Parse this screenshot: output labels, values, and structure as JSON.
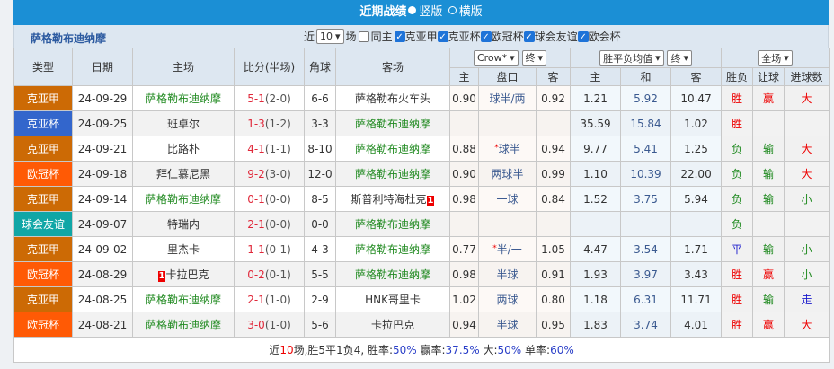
{
  "title": "近期战绩",
  "view_vertical": "竖版",
  "view_horizontal": "横版",
  "team": "萨格勒布迪纳摩",
  "filters": {
    "near": "近",
    "count": "10",
    "games": "场",
    "same_home": "同主",
    "leagues": [
      "克亚甲",
      "克亚杯",
      "欧冠杯",
      "球会友谊",
      "欧会杯"
    ]
  },
  "headers": {
    "type": "类型",
    "date": "日期",
    "home": "主场",
    "score": "比分(半场)",
    "corner": "角球",
    "away": "客场",
    "company": "Crow*",
    "final1": "终",
    "avg": "胜平负均值",
    "final2": "终",
    "scope": "全场",
    "h_home": "主",
    "h_line": "盘口",
    "h_away": "客",
    "o_home": "主",
    "o_draw": "和",
    "o_away": "客",
    "wl": "胜负",
    "hcp": "让球",
    "goals": "进球数"
  },
  "colors": {
    "克亚甲": "#cc6a05",
    "克亚杯": "#3366cc",
    "欧冠杯": "#ff5a05",
    "球会友谊": "#10a6a6"
  },
  "rows": [
    {
      "type": "克亚甲",
      "date": "24-09-29",
      "home": "萨格勒布迪纳摩",
      "home_team": true,
      "score": "5-1",
      "half": "(2-0)",
      "corner": "6-6",
      "away": "萨格勒布火车头",
      "h1": "0.90",
      "line": "球半/两",
      "h2": "0.92",
      "o1": "1.21",
      "o2": "5.92",
      "o3": "10.47",
      "wl": "胜",
      "hcp": "赢",
      "goals": "大"
    },
    {
      "type": "克亚杯",
      "date": "24-09-25",
      "home": "班卓尔",
      "score": "1-3",
      "half": "(1-2)",
      "corner": "3-3",
      "away": "萨格勒布迪纳摩",
      "h1": "",
      "line": "",
      "h2": "",
      "o1": "35.59",
      "o2": "15.84",
      "o3": "1.02",
      "wl": "胜",
      "hcp": "",
      "goals": ""
    },
    {
      "type": "克亚甲",
      "date": "24-09-21",
      "home": "比路朴",
      "score": "4-1",
      "half": "(1-1)",
      "corner": "8-10",
      "away": "萨格勒布迪纳摩",
      "h1": "0.88",
      "line": "球半",
      "star": true,
      "h2": "0.94",
      "o1": "9.77",
      "o2": "5.41",
      "o3": "1.25",
      "wl": "负",
      "hcp": "输",
      "goals": "大"
    },
    {
      "type": "欧冠杯",
      "date": "24-09-18",
      "home": "拜仁慕尼黑",
      "score": "9-2",
      "half": "(3-0)",
      "corner": "12-0",
      "away": "萨格勒布迪纳摩",
      "h1": "0.90",
      "line": "两球半",
      "h2": "0.99",
      "o1": "1.10",
      "o2": "10.39",
      "o3": "22.00",
      "wl": "负",
      "hcp": "输",
      "goals": "大"
    },
    {
      "type": "克亚甲",
      "date": "24-09-14",
      "home": "萨格勒布迪纳摩",
      "home_team": true,
      "score": "0-1",
      "half": "(0-0)",
      "corner": "8-5",
      "away": "斯普利特海杜克",
      "away_rc": "1",
      "h1": "0.98",
      "line": "一球",
      "h2": "0.84",
      "o1": "1.52",
      "o2": "3.75",
      "o3": "5.94",
      "wl": "负",
      "hcp": "输",
      "goals": "小"
    },
    {
      "type": "球会友谊",
      "date": "24-09-07",
      "home": "特瑞内",
      "score": "2-1",
      "half": "(0-0)",
      "corner": "0-0",
      "away": "萨格勒布迪纳摩",
      "h1": "",
      "line": "",
      "h2": "",
      "o1": "",
      "o2": "",
      "o3": "",
      "wl": "负",
      "hcp": "",
      "goals": ""
    },
    {
      "type": "克亚甲",
      "date": "24-09-02",
      "home": "里杰卡",
      "score": "1-1",
      "half": "(0-1)",
      "corner": "4-3",
      "away": "萨格勒布迪纳摩",
      "h1": "0.77",
      "line": "半/一",
      "star": true,
      "h2": "1.05",
      "o1": "4.47",
      "o2": "3.54",
      "o3": "1.71",
      "wl": "平",
      "hcp": "输",
      "goals": "小"
    },
    {
      "type": "欧冠杯",
      "date": "24-08-29",
      "home": "卡拉巴克",
      "home_rc": "1",
      "score": "0-2",
      "half": "(0-1)",
      "corner": "5-5",
      "away": "萨格勒布迪纳摩",
      "h1": "0.98",
      "line": "半球",
      "h2": "0.91",
      "o1": "1.93",
      "o2": "3.97",
      "o3": "3.43",
      "wl": "胜",
      "hcp": "赢",
      "goals": "小"
    },
    {
      "type": "克亚甲",
      "date": "24-08-25",
      "home": "萨格勒布迪纳摩",
      "home_team": true,
      "score": "2-1",
      "half": "(1-0)",
      "corner": "2-9",
      "away": "HNK哥里卡",
      "h1": "1.02",
      "line": "两球",
      "h2": "0.80",
      "o1": "1.18",
      "o2": "6.31",
      "o3": "11.71",
      "wl": "胜",
      "hcp": "输",
      "goals": "走"
    },
    {
      "type": "欧冠杯",
      "date": "24-08-21",
      "home": "萨格勒布迪纳摩",
      "home_team": true,
      "score": "3-0",
      "half": "(1-0)",
      "corner": "5-6",
      "away": "卡拉巴克",
      "h1": "0.94",
      "line": "半球",
      "h2": "0.95",
      "o1": "1.83",
      "o2": "3.74",
      "o3": "4.01",
      "wl": "胜",
      "hcp": "赢",
      "goals": "大"
    }
  ],
  "summary": {
    "p1": "近",
    "n": "10",
    "p2": "场,胜5平1负4, 胜率:",
    "win": "50%",
    "p3": " 赢率:",
    "cover": "37.5%",
    "p4": " 大:",
    "over": "50%",
    "p5": " 单率:",
    "odd": "60%"
  }
}
